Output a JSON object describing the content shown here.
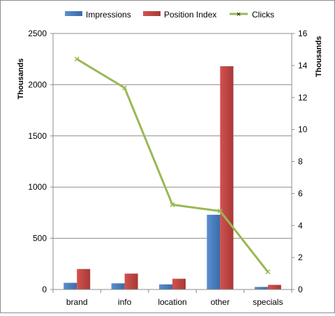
{
  "chart_data": {
    "type": "bar",
    "categories": [
      "brand",
      "info",
      "location",
      "other",
      "specials"
    ],
    "series": [
      {
        "name": "Impressions",
        "type": "bar",
        "axis": "left",
        "values": [
          65,
          60,
          50,
          730,
          25
        ]
      },
      {
        "name": "Position Index",
        "type": "bar",
        "axis": "left",
        "values": [
          200,
          155,
          105,
          2180,
          45
        ]
      },
      {
        "name": "Clicks",
        "type": "line",
        "axis": "right",
        "values": [
          14.4,
          12.6,
          5.3,
          4.9,
          1.1
        ]
      }
    ],
    "left_axis": {
      "title": "Thousands",
      "min": 0,
      "max": 2500,
      "ticks": [
        "0",
        "500",
        "1000",
        "1500",
        "2000",
        "2500"
      ]
    },
    "right_axis": {
      "title": "Thousands",
      "min": 0,
      "max": 16,
      "ticks": [
        "0",
        "2",
        "4",
        "6",
        "8",
        "10",
        "12",
        "14",
        "16"
      ]
    },
    "grid": true,
    "legend_position": "top",
    "colors": {
      "Impressions": "#4a7ebb",
      "Position Index": "#be4b48",
      "Clicks": "#98b954"
    }
  }
}
